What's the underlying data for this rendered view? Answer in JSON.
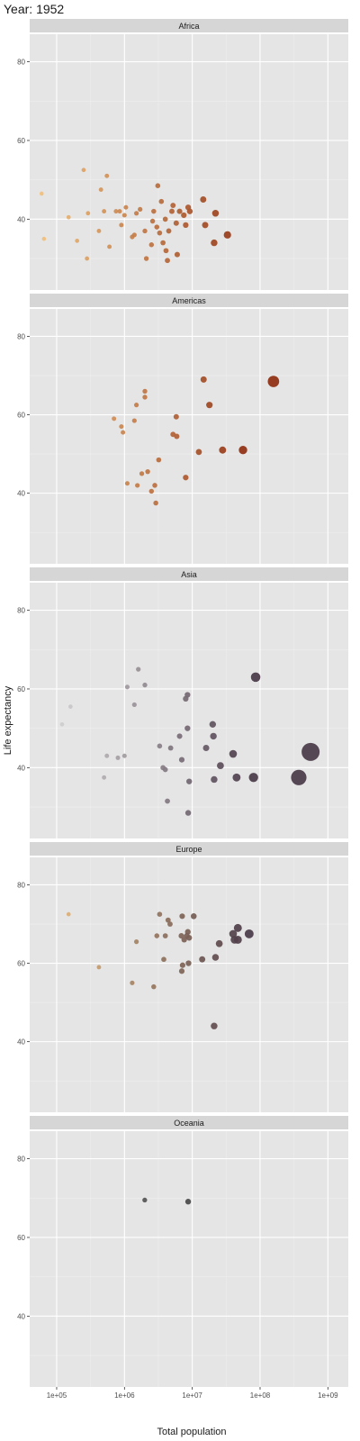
{
  "title": "Year: 1952",
  "chart_data": {
    "type": "scatter",
    "xlabel": "Total population",
    "ylabel": "Life expectancy",
    "x_scale": "log10",
    "xlim": [
      40000,
      2000000000
    ],
    "ylim": [
      22,
      87
    ],
    "x_ticks": [
      100000,
      1000000,
      10000000,
      100000000,
      1000000000
    ],
    "x_tick_labels": [
      "1e+05",
      "1e+06",
      "1e+07",
      "1e+08",
      "1e+09"
    ],
    "y_ticks": [
      40,
      60,
      80
    ],
    "y_tick_labels": [
      "40",
      "60",
      "80"
    ],
    "grid": true,
    "legend": "none",
    "colors": {
      "panel_bg": "#e5e5e5",
      "strip_bg": "#d6d6d6",
      "grid_major": "#ffffff",
      "grid_minor": "#efefef"
    },
    "panels": [
      {
        "name": "Africa",
        "colors": [
          "#f2c07a",
          "#8f2f10"
        ],
        "points": [
          {
            "x": 60000,
            "y": 46.5
          },
          {
            "x": 65000,
            "y": 35
          },
          {
            "x": 150000,
            "y": 40.5
          },
          {
            "x": 200000,
            "y": 34.5
          },
          {
            "x": 250000,
            "y": 52.5
          },
          {
            "x": 280000,
            "y": 30
          },
          {
            "x": 290000,
            "y": 41.5
          },
          {
            "x": 420000,
            "y": 37
          },
          {
            "x": 450000,
            "y": 47.5
          },
          {
            "x": 500000,
            "y": 42
          },
          {
            "x": 550000,
            "y": 51
          },
          {
            "x": 600000,
            "y": 33
          },
          {
            "x": 750000,
            "y": 42
          },
          {
            "x": 850000,
            "y": 42
          },
          {
            "x": 900000,
            "y": 38.5
          },
          {
            "x": 1000000,
            "y": 41
          },
          {
            "x": 1050000,
            "y": 43
          },
          {
            "x": 1300000,
            "y": 35.5
          },
          {
            "x": 1400000,
            "y": 36
          },
          {
            "x": 1500000,
            "y": 41.5
          },
          {
            "x": 1700000,
            "y": 42.5
          },
          {
            "x": 2000000,
            "y": 37
          },
          {
            "x": 2100000,
            "y": 30
          },
          {
            "x": 2500000,
            "y": 33.5
          },
          {
            "x": 2600000,
            "y": 39.5
          },
          {
            "x": 2700000,
            "y": 42
          },
          {
            "x": 3000000,
            "y": 38
          },
          {
            "x": 3100000,
            "y": 48.5
          },
          {
            "x": 3300000,
            "y": 36.5
          },
          {
            "x": 3500000,
            "y": 44.5
          },
          {
            "x": 3700000,
            "y": 34
          },
          {
            "x": 4000000,
            "y": 40
          },
          {
            "x": 4100000,
            "y": 32
          },
          {
            "x": 4300000,
            "y": 29.5
          },
          {
            "x": 4500000,
            "y": 37
          },
          {
            "x": 5000000,
            "y": 42
          },
          {
            "x": 5200000,
            "y": 43.5
          },
          {
            "x": 5800000,
            "y": 39
          },
          {
            "x": 6000000,
            "y": 31
          },
          {
            "x": 6500000,
            "y": 42
          },
          {
            "x": 7500000,
            "y": 41
          },
          {
            "x": 8000000,
            "y": 38.5
          },
          {
            "x": 8700000,
            "y": 43
          },
          {
            "x": 9200000,
            "y": 42
          },
          {
            "x": 14500000,
            "y": 45
          },
          {
            "x": 15500000,
            "y": 38.5
          },
          {
            "x": 21000000,
            "y": 34
          },
          {
            "x": 22000000,
            "y": 41.5
          },
          {
            "x": 33000000,
            "y": 36
          }
        ]
      },
      {
        "name": "Americas",
        "colors": [
          "#f2c07a",
          "#8f2f10"
        ],
        "points": [
          {
            "x": 700000,
            "y": 59
          },
          {
            "x": 900000,
            "y": 57
          },
          {
            "x": 950000,
            "y": 55.5
          },
          {
            "x": 1100000,
            "y": 42.5
          },
          {
            "x": 1400000,
            "y": 58.5
          },
          {
            "x": 1500000,
            "y": 62.5
          },
          {
            "x": 1550000,
            "y": 42
          },
          {
            "x": 1800000,
            "y": 45
          },
          {
            "x": 2000000,
            "y": 64.5
          },
          {
            "x": 2000000,
            "y": 66
          },
          {
            "x": 2200000,
            "y": 45.5
          },
          {
            "x": 2500000,
            "y": 40.5
          },
          {
            "x": 2800000,
            "y": 42
          },
          {
            "x": 2900000,
            "y": 37.5
          },
          {
            "x": 3200000,
            "y": 48.5
          },
          {
            "x": 5200000,
            "y": 55
          },
          {
            "x": 5800000,
            "y": 59.5
          },
          {
            "x": 5900000,
            "y": 54.5
          },
          {
            "x": 8000000,
            "y": 44
          },
          {
            "x": 12500000,
            "y": 50.5
          },
          {
            "x": 14700000,
            "y": 69
          },
          {
            "x": 17900000,
            "y": 62.5
          },
          {
            "x": 28000000,
            "y": 51
          },
          {
            "x": 56000000,
            "y": 51
          },
          {
            "x": 157500000,
            "y": 68.5
          }
        ]
      },
      {
        "name": "Asia",
        "colors": [
          "#dddddd",
          "#4a3a48"
        ],
        "points": [
          {
            "x": 120000,
            "y": 51
          },
          {
            "x": 160000,
            "y": 55.5
          },
          {
            "x": 500000,
            "y": 37.5
          },
          {
            "x": 550000,
            "y": 43
          },
          {
            "x": 800000,
            "y": 42.5
          },
          {
            "x": 1000000,
            "y": 43
          },
          {
            "x": 1100000,
            "y": 60.5
          },
          {
            "x": 1400000,
            "y": 56
          },
          {
            "x": 1600000,
            "y": 65
          },
          {
            "x": 2000000,
            "y": 61
          },
          {
            "x": 3300000,
            "y": 45.5
          },
          {
            "x": 3700000,
            "y": 40
          },
          {
            "x": 4000000,
            "y": 39.5
          },
          {
            "x": 4300000,
            "y": 31.5
          },
          {
            "x": 4800000,
            "y": 45
          },
          {
            "x": 6500000,
            "y": 48
          },
          {
            "x": 7000000,
            "y": 42
          },
          {
            "x": 8000000,
            "y": 57.5
          },
          {
            "x": 8500000,
            "y": 58.5
          },
          {
            "x": 8500000,
            "y": 50
          },
          {
            "x": 8700000,
            "y": 28.5
          },
          {
            "x": 9000000,
            "y": 36.5
          },
          {
            "x": 16000000,
            "y": 45
          },
          {
            "x": 20000000,
            "y": 51
          },
          {
            "x": 20500000,
            "y": 48
          },
          {
            "x": 21000000,
            "y": 37
          },
          {
            "x": 26000000,
            "y": 40.5
          },
          {
            "x": 40000000,
            "y": 43.5
          },
          {
            "x": 45000000,
            "y": 37.5
          },
          {
            "x": 80000000,
            "y": 37.5
          },
          {
            "x": 86000000,
            "y": 63
          },
          {
            "x": 372000000,
            "y": 37.5
          },
          {
            "x": 556000000,
            "y": 44
          }
        ]
      },
      {
        "name": "Europe",
        "colors": [
          "#f2c07a",
          "#4a3a48"
        ],
        "points": [
          {
            "x": 150000,
            "y": 72.5
          },
          {
            "x": 420000,
            "y": 59
          },
          {
            "x": 1300000,
            "y": 55
          },
          {
            "x": 1500000,
            "y": 65.5
          },
          {
            "x": 2700000,
            "y": 54
          },
          {
            "x": 3000000,
            "y": 67
          },
          {
            "x": 3300000,
            "y": 72.5
          },
          {
            "x": 3800000,
            "y": 61
          },
          {
            "x": 4000000,
            "y": 67
          },
          {
            "x": 4400000,
            "y": 71
          },
          {
            "x": 4700000,
            "y": 70
          },
          {
            "x": 6900000,
            "y": 67
          },
          {
            "x": 7000000,
            "y": 58
          },
          {
            "x": 7100000,
            "y": 72
          },
          {
            "x": 7200000,
            "y": 59.5
          },
          {
            "x": 7600000,
            "y": 66
          },
          {
            "x": 8300000,
            "y": 67
          },
          {
            "x": 8600000,
            "y": 68
          },
          {
            "x": 8800000,
            "y": 60
          },
          {
            "x": 9000000,
            "y": 66.5
          },
          {
            "x": 10500000,
            "y": 72
          },
          {
            "x": 14000000,
            "y": 61
          },
          {
            "x": 21000000,
            "y": 44
          },
          {
            "x": 22000000,
            "y": 61.5
          },
          {
            "x": 25000000,
            "y": 65
          },
          {
            "x": 40000000,
            "y": 67.5
          },
          {
            "x": 42000000,
            "y": 66
          },
          {
            "x": 47000000,
            "y": 69
          },
          {
            "x": 47000000,
            "y": 66
          },
          {
            "x": 69000000,
            "y": 67.5
          }
        ]
      },
      {
        "name": "Oceania",
        "colors": [
          "#6e6e6e",
          "#3a3a3a"
        ],
        "points": [
          {
            "x": 1990000,
            "y": 69.5
          },
          {
            "x": 8690000,
            "y": 69.1
          }
        ]
      }
    ]
  }
}
